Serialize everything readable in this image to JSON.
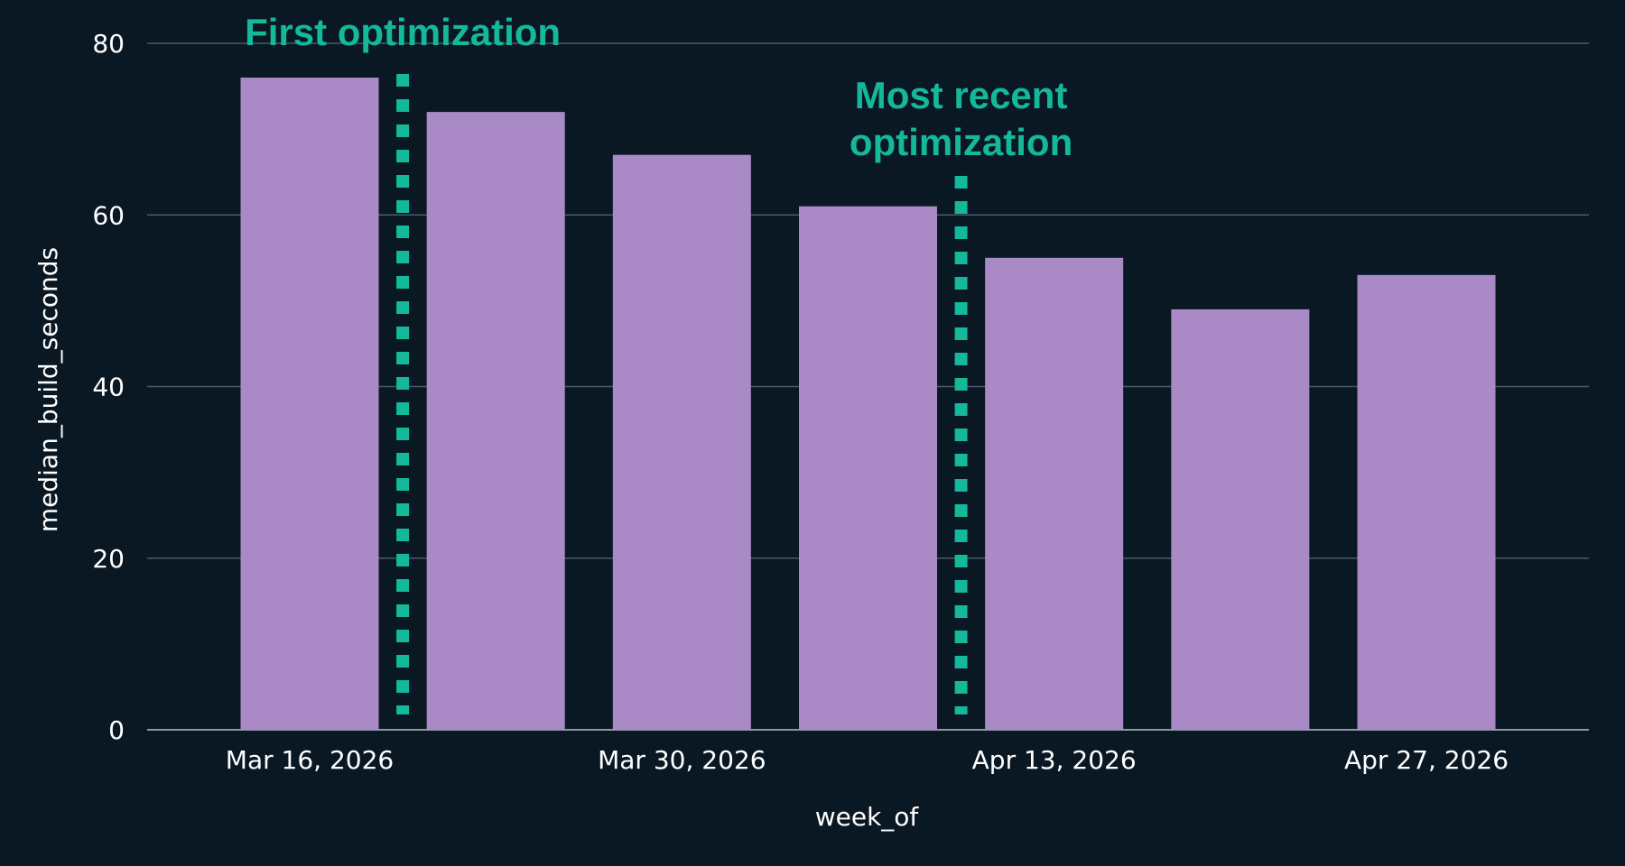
{
  "colors": {
    "background": "#0a1823",
    "bar": "#aa8ac6",
    "annotation": "#14b89a",
    "grid": "#4a5a66",
    "axis_line": "#8a98a2",
    "text": "#ffffff"
  },
  "chart_data": {
    "type": "bar",
    "x": [
      "2026-03-16",
      "2026-03-23",
      "2026-03-30",
      "2026-04-06",
      "2026-04-13",
      "2026-04-20",
      "2026-04-27"
    ],
    "values": [
      76,
      72,
      67,
      61,
      55,
      49,
      53
    ],
    "x_ticks": [
      "Mar 16, 2026",
      "Mar 30, 2026",
      "Apr 13, 2026",
      "Apr 27, 2026"
    ],
    "x_tick_dates": [
      "2026-03-16",
      "2026-03-30",
      "2026-04-13",
      "2026-04-27"
    ],
    "y_ticks": [
      0,
      20,
      40,
      60,
      80
    ],
    "xlabel": "week_of",
    "ylabel": "median_build_seconds",
    "ylim": [
      0,
      80
    ],
    "grid": true,
    "legend": "none",
    "annotations": [
      {
        "lines": [
          "First optimization"
        ],
        "x_date": "2026-03-19T12:00",
        "style": "dotted-vertical-line"
      },
      {
        "lines": [
          "Most recent",
          "optimization"
        ],
        "x_date": "2026-04-09T12:00",
        "style": "dotted-vertical-line"
      }
    ]
  }
}
